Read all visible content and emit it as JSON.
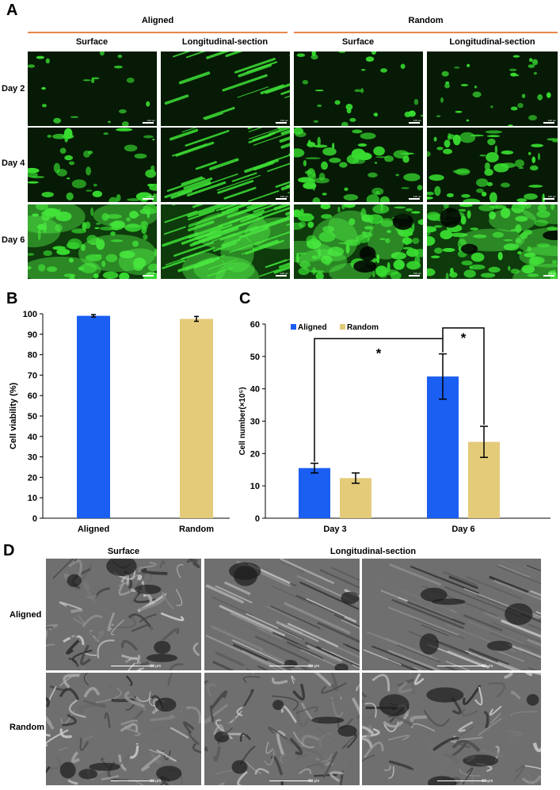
{
  "panelA": {
    "letter": "A",
    "groups": [
      "Aligned",
      "Random"
    ],
    "columns": [
      "Surface",
      "Longitudinal-section",
      "Surface",
      "Longitudinal-section"
    ],
    "rows": [
      "Day 2",
      "Day 4",
      "Day 6"
    ],
    "scale_label": "100 μm"
  },
  "panelB": {
    "letter": "B"
  },
  "panelC": {
    "letter": "C"
  },
  "panelD": {
    "letter": "D",
    "columns": [
      "Surface",
      "Longitudinal-section"
    ],
    "rows": [
      "Aligned",
      "Random"
    ],
    "scale_label": "50 μm"
  },
  "colors": {
    "aligned": "#1a5ef2",
    "random": "#e3cb7a",
    "fluorescence": "#34d92e",
    "group_line": "#e8874a"
  },
  "chart_data": [
    {
      "type": "bar",
      "panel": "B",
      "categories": [
        "Aligned",
        "Random"
      ],
      "values": [
        99,
        97.5
      ],
      "errors": [
        0.6,
        1.2
      ],
      "bar_colors": [
        "#1a5ef2",
        "#e3cb7a"
      ],
      "title": "",
      "xlabel": "",
      "ylabel": "Cell viability (%)",
      "ylim": [
        0,
        100
      ],
      "yticks": [
        0,
        10,
        20,
        30,
        40,
        50,
        60,
        70,
        80,
        90,
        100
      ]
    },
    {
      "type": "bar",
      "panel": "C",
      "categories": [
        "Day 3",
        "Day 6"
      ],
      "series": [
        {
          "name": "Aligned",
          "values": [
            15.5,
            43.8
          ],
          "errors": [
            1.5,
            7.0
          ],
          "color": "#1a5ef2"
        },
        {
          "name": "Random",
          "values": [
            12.4,
            23.6
          ],
          "errors": [
            1.6,
            4.8
          ],
          "color": "#e3cb7a"
        }
      ],
      "title": "",
      "xlabel": "",
      "ylabel": "Cell number(×10⁵)",
      "ylim": [
        0,
        60
      ],
      "yticks": [
        0,
        10,
        20,
        30,
        40,
        50,
        60
      ],
      "legend": "top-left",
      "annotations": [
        "*",
        "*"
      ]
    }
  ]
}
